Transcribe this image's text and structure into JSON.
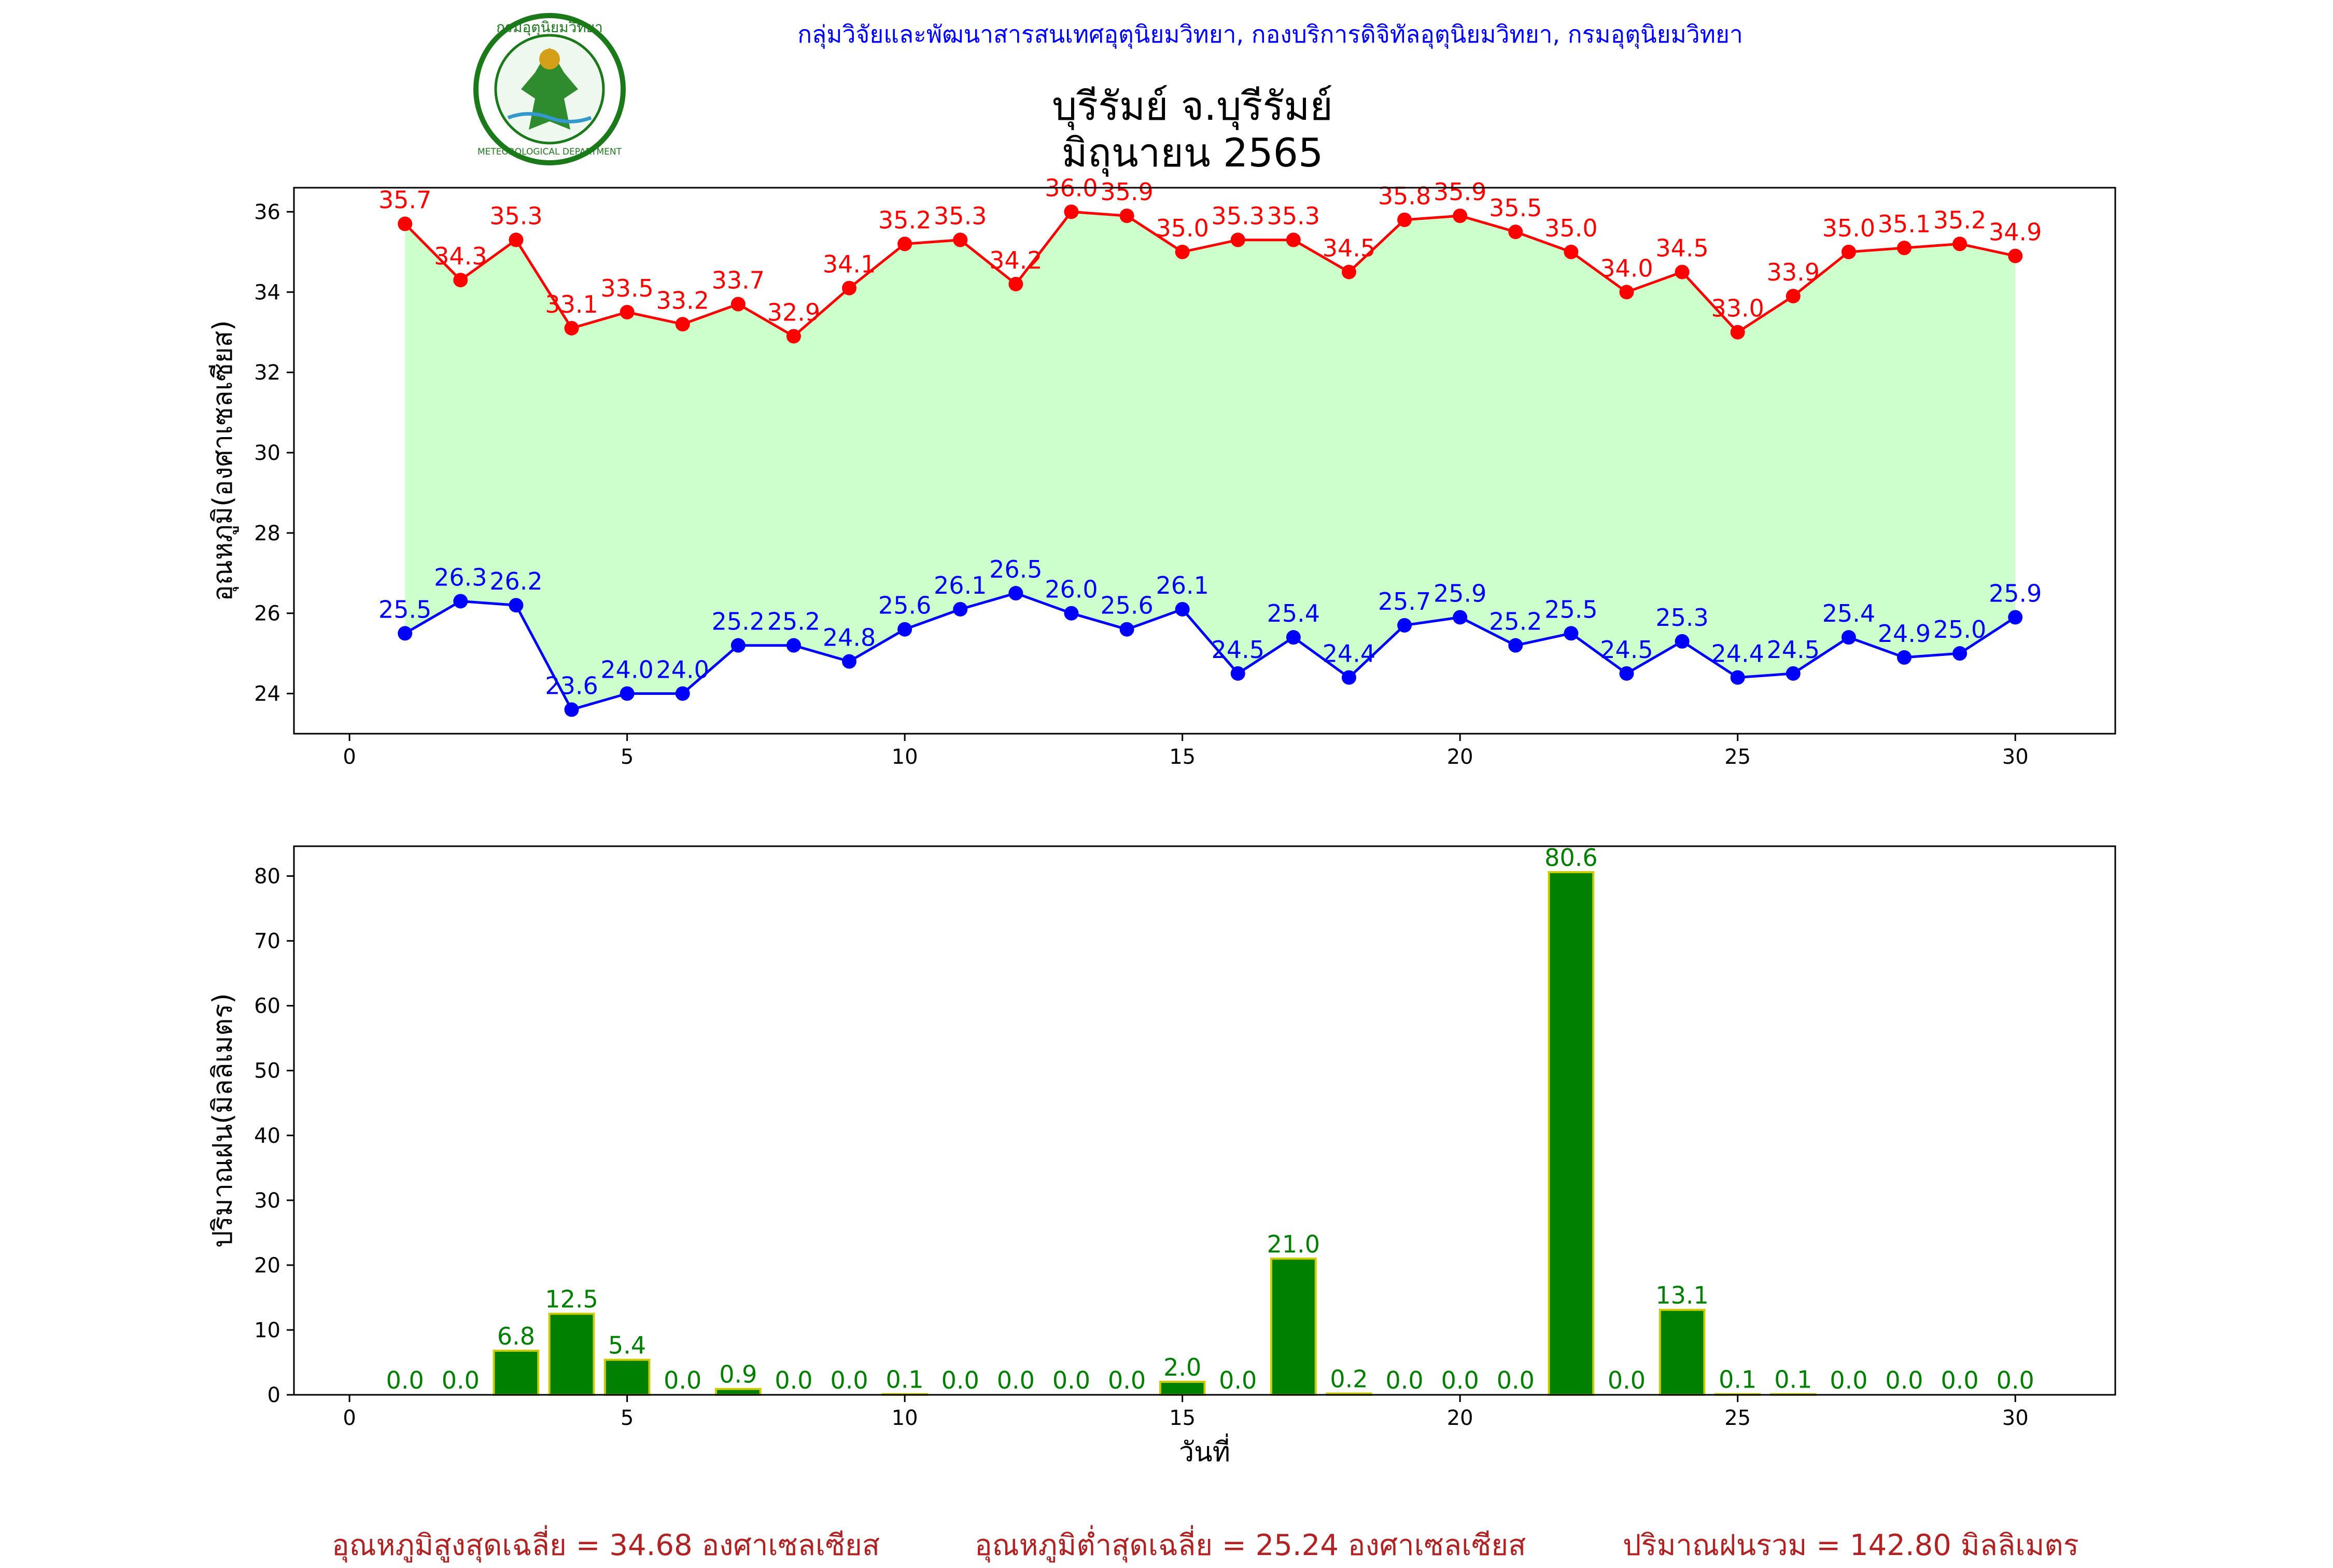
{
  "header": {
    "agency": "กลุ่มวิจัยและพัฒนาสารสนเทศอุตุนิยมวิทยา, กองบริการดิจิทัลอุตุนิยมวิทยา, กรมอุตุนิยมวิทยา",
    "station": "บุรีรัมย์ จ.บุรีรัมย์",
    "period": "มิถุนายน 2565",
    "logo_text": "กรมอุตุนิยมวิทยา",
    "logo_sub": "METEOROLOGICAL DEPARTMENT"
  },
  "chart_data": [
    {
      "type": "line",
      "ylabel": "อุณหภูมิ(องศาเซลเซียส)",
      "x": [
        1,
        2,
        3,
        4,
        5,
        6,
        7,
        8,
        9,
        10,
        11,
        12,
        13,
        14,
        15,
        16,
        17,
        18,
        19,
        20,
        21,
        22,
        23,
        24,
        25,
        26,
        27,
        28,
        29,
        30
      ],
      "xlim": [
        -1,
        31.8
      ],
      "ylim": [
        23,
        36.6
      ],
      "xticks": [
        0,
        5,
        10,
        15,
        20,
        25,
        30
      ],
      "yticks": [
        24,
        26,
        28,
        30,
        32,
        34,
        36
      ],
      "series": [
        {
          "values": [
            35.7,
            34.3,
            35.3,
            33.1,
            33.5,
            33.2,
            33.7,
            32.9,
            34.1,
            35.2,
            35.3,
            34.2,
            36.0,
            35.9,
            35.0,
            35.3,
            35.3,
            34.5,
            35.8,
            35.9,
            35.5,
            35.0,
            34.0,
            34.5,
            33.0,
            33.9,
            35.0,
            35.1,
            35.2,
            34.9
          ],
          "color": "#ff0000"
        },
        {
          "values": [
            25.5,
            26.3,
            26.2,
            23.6,
            24.0,
            24.0,
            25.2,
            25.2,
            24.8,
            25.6,
            26.1,
            26.5,
            26.0,
            25.6,
            26.1,
            24.5,
            25.4,
            24.4,
            25.7,
            25.9,
            25.2,
            25.5,
            24.5,
            25.3,
            24.4,
            24.5,
            25.4,
            24.9,
            25.0,
            25.9
          ],
          "color": "#0000ff"
        }
      ],
      "fill_color": "#ccffcc"
    },
    {
      "type": "bar",
      "xlabel": "วันที่",
      "ylabel": "ปริมาณฝน(มิลลิเมตร)",
      "x": [
        1,
        2,
        3,
        4,
        5,
        6,
        7,
        8,
        9,
        10,
        11,
        12,
        13,
        14,
        15,
        16,
        17,
        18,
        19,
        20,
        21,
        22,
        23,
        24,
        25,
        26,
        27,
        28,
        29,
        30
      ],
      "values": [
        0.0,
        0.0,
        6.8,
        12.5,
        5.4,
        0.0,
        0.9,
        0.0,
        0.0,
        0.1,
        0.0,
        0.0,
        0.0,
        0.0,
        2.0,
        0.0,
        21.0,
        0.2,
        0.0,
        0.0,
        0.0,
        80.6,
        0.0,
        13.1,
        0.1,
        0.1,
        0.0,
        0.0,
        0.0,
        0.0
      ],
      "xlim": [
        -1,
        31.8
      ],
      "ylim": [
        0,
        84.6
      ],
      "xticks": [
        0,
        5,
        10,
        15,
        20,
        25,
        30
      ],
      "yticks": [
        0,
        10,
        20,
        30,
        40,
        50,
        60,
        70,
        80
      ],
      "bar_color": "#008000",
      "edge_color": "#cccc00",
      "label_color": "#008000"
    }
  ],
  "footer": {
    "max_avg": "อุณหภูมิสูงสุดเฉลี่ย = 34.68 องศาเซลเซียส",
    "min_avg": "อุณหภูมิต่ำสุดเฉลี่ย = 25.24 องศาเซลเซียส",
    "rain_total": "ปริมาณฝนรวม = 142.80 มิลลิเมตร"
  }
}
